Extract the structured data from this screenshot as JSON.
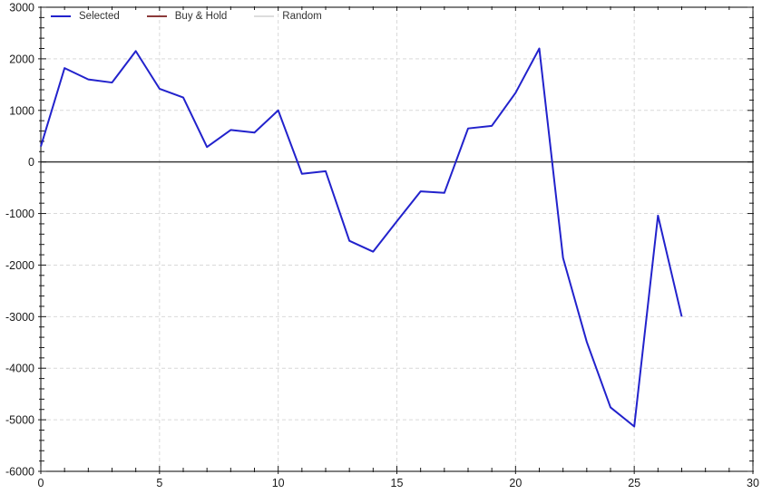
{
  "chart_data": {
    "type": "line",
    "title": "",
    "xlabel": "",
    "ylabel": "",
    "xlim": [
      0,
      30
    ],
    "ylim": [
      -6000,
      3000
    ],
    "x_major_ticks": [
      0,
      5,
      10,
      15,
      20,
      25,
      30
    ],
    "y_major_ticks": [
      3000,
      2000,
      1000,
      0,
      -1000,
      -2000,
      -3000,
      -4000,
      -5000,
      -6000
    ],
    "x_minor_step": 1,
    "y_minor_step": 200,
    "grid": "dashed-major",
    "zero_line": true,
    "legend_position": "top-left-horizontal",
    "x": [
      0,
      1,
      2,
      3,
      4,
      5,
      6,
      7,
      8,
      9,
      10,
      11,
      12,
      13,
      14,
      15,
      16,
      17,
      18,
      19,
      20,
      21,
      22,
      23,
      24,
      25,
      26,
      27
    ],
    "series": [
      {
        "name": "Selected",
        "color": "#2222cc",
        "values": [
          300,
          1820,
          1600,
          1540,
          2150,
          1420,
          1250,
          290,
          620,
          570,
          1000,
          -230,
          -180,
          -1530,
          -1740,
          -1150,
          -570,
          -600,
          650,
          700,
          1340,
          2200,
          -1860,
          -3490,
          -4760,
          -5130,
          -1040,
          -3000
        ]
      },
      {
        "name": "Buy & Hold",
        "color": "#8b3a3a",
        "values": []
      },
      {
        "name": "Random",
        "color": "#dddddd",
        "values": []
      }
    ],
    "colors": {
      "grid": "#d9d9d9",
      "frame": "#000000",
      "zero_line": "#3a3a3a",
      "tick": "#1a1a1a"
    }
  }
}
